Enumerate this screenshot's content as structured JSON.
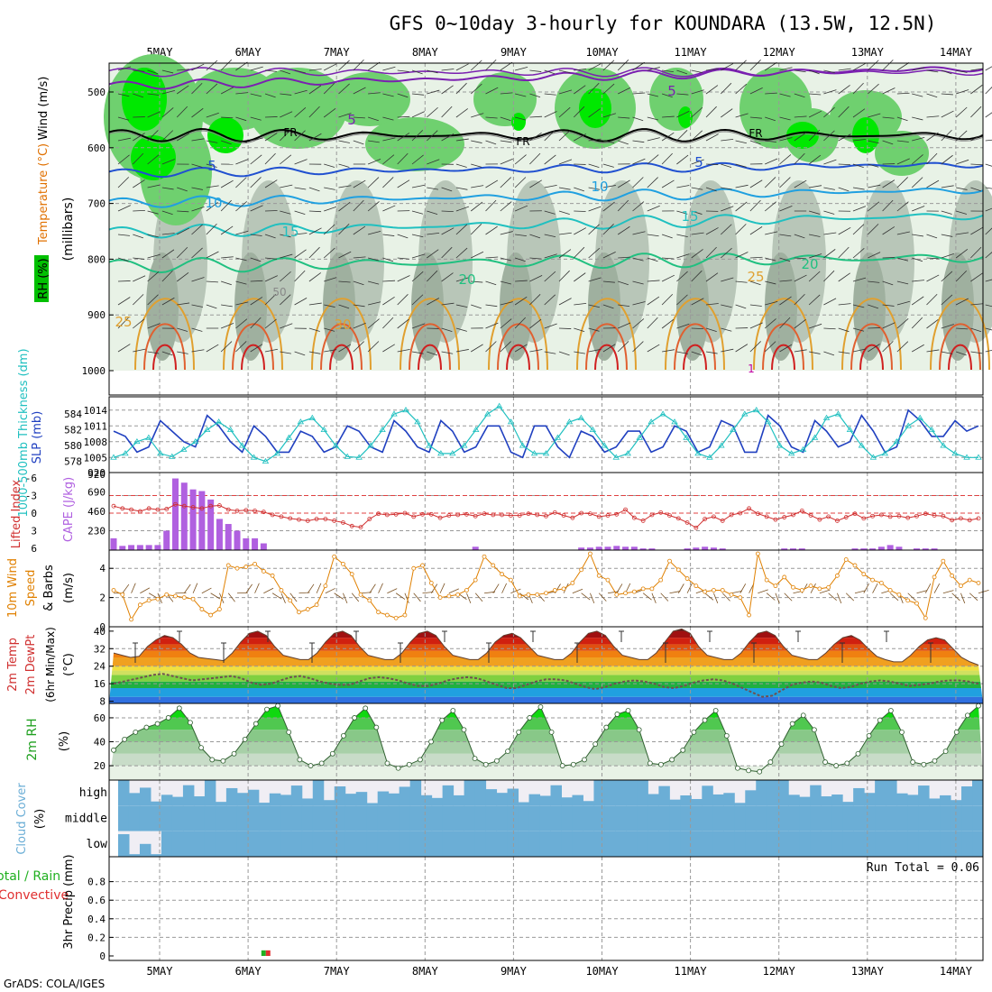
{
  "title": "GFS 0~10day 3-hourly for KOUNDARA (13.5W, 12.5N)",
  "credit": "GrADS: COLA/IGES",
  "date_labels": [
    "5MAY",
    "6MAY",
    "7MAY",
    "8MAY",
    "9MAY",
    "10MAY",
    "11MAY",
    "12MAY",
    "13MAY",
    "14MAY"
  ],
  "colors": {
    "rh_green": "#00e000",
    "temp": "#e03030",
    "wind": "#000000",
    "cyan": "#20c0c0",
    "blue": "#2040c0",
    "cape": "#b060e0",
    "orange": "#e08000",
    "cloud": "#6baed6"
  },
  "chart_data": [
    {
      "type": "heatmap",
      "panel": "profile",
      "ylabel": "(millibars)",
      "series_labels": [
        "RH (%)",
        "Temperature (°C)",
        "Wind (m/s)"
      ],
      "yticks": [
        500,
        600,
        700,
        800,
        900,
        1000
      ],
      "ylim": [
        1000,
        450
      ],
      "grid": true,
      "contour_labels": [
        "5",
        "5",
        "FR",
        "FR",
        "FR",
        "5",
        "5",
        "10",
        "10",
        "15",
        "15",
        "20",
        "20",
        "25",
        "25",
        "30",
        "50",
        "1"
      ]
    },
    {
      "type": "line",
      "panel": "slp_thickness",
      "ylabels": [
        "1000-500mb Thickness (dm)",
        "SLP (mb)"
      ],
      "left_ticks": [
        "584",
        "582",
        "580",
        "578"
      ],
      "right_ticks": [
        "1014",
        "1011",
        "1008",
        "1005"
      ],
      "left_ylim": [
        577.5,
        585.5
      ],
      "right_ylim": [
        1003.5,
        1015.5
      ],
      "series": [
        {
          "name": "SLP (mb)",
          "values": [
            1010,
            1009,
            1006,
            1007,
            1012,
            1010,
            1008,
            1007,
            1013,
            1011,
            1008,
            1006,
            1011,
            1009,
            1006,
            1006,
            1010,
            1009,
            1006,
            1007,
            1011,
            1010,
            1007,
            1006,
            1012,
            1010,
            1007,
            1006,
            1012,
            1010,
            1006,
            1007,
            1011,
            1011,
            1006,
            1005,
            1011,
            1011,
            1007,
            1005,
            1010,
            1009,
            1006,
            1007,
            1010,
            1010,
            1006,
            1007,
            1011,
            1010,
            1006,
            1007,
            1012,
            1011,
            1006,
            1006,
            1013,
            1011,
            1007,
            1006,
            1012,
            1010,
            1007,
            1008,
            1013,
            1010,
            1006,
            1007,
            1014,
            1012,
            1009,
            1009,
            1012,
            1010,
            1011
          ]
        },
        {
          "name": "1000-500mb Thickness (dm)",
          "values": [
            578.5,
            579,
            580.5,
            581,
            579,
            578.6,
            579.5,
            580.5,
            582,
            583,
            582,
            580,
            578.5,
            578,
            579,
            581,
            583,
            583.5,
            582,
            580,
            578.6,
            578.5,
            580,
            582,
            584,
            584.5,
            583,
            580,
            579,
            579,
            580,
            582,
            584,
            585,
            583,
            580,
            579,
            579,
            581,
            583,
            583.5,
            582,
            580,
            578.5,
            579,
            581,
            583,
            584,
            583,
            581,
            579,
            578.5,
            580,
            582,
            584,
            584.5,
            583,
            580,
            579,
            579.5,
            581,
            583.5,
            584,
            582,
            580,
            578.5,
            579,
            580.5,
            582.5,
            583.5,
            582,
            580,
            579,
            578.5,
            578.5
          ]
        }
      ]
    },
    {
      "type": "bar",
      "panel": "cape_li",
      "ylabels": [
        "Lifted Index",
        "CAPE (J/kg)"
      ],
      "left_ticks": [
        "-6",
        "-3",
        "0",
        "3",
        "6"
      ],
      "right_ticks": [
        "920",
        "690",
        "460",
        "230"
      ],
      "left_ylim": [
        6,
        -6
      ],
      "right_ylim": [
        0,
        920
      ],
      "series": [
        {
          "name": "CAPE (J/kg)",
          "values": [
            140,
            50,
            60,
            60,
            60,
            60,
            230,
            850,
            800,
            720,
            700,
            600,
            370,
            310,
            230,
            140,
            140,
            80,
            0,
            0,
            0,
            0,
            0,
            0,
            0,
            0,
            0,
            0,
            0,
            0,
            0,
            0,
            0,
            0,
            0,
            0,
            0,
            0,
            0,
            0,
            0,
            40,
            0,
            0,
            0,
            0,
            0,
            0,
            0,
            0,
            0,
            0,
            0,
            30,
            30,
            40,
            40,
            50,
            40,
            40,
            20,
            20,
            0,
            0,
            0,
            20,
            30,
            40,
            30,
            20,
            0,
            0,
            0,
            0,
            0,
            0,
            20,
            20,
            20,
            0,
            0,
            0,
            0,
            0,
            20,
            20,
            20,
            40,
            60,
            40,
            0,
            20,
            20,
            20,
            0,
            0,
            0,
            0,
            0
          ]
        },
        {
          "name": "Lifted Index",
          "values": [
            -1.2,
            -0.8,
            -0.6,
            -0.3,
            -0.8,
            -0.6,
            -0.7,
            -1.5,
            -1.2,
            -1.0,
            -0.8,
            -1.2,
            -1.3,
            -0.6,
            -0.4,
            -0.5,
            -0.4,
            -0.2,
            0.3,
            0.6,
            0.9,
            1.1,
            1.3,
            1.0,
            1.0,
            1.3,
            1.6,
            2.2,
            2.4,
            1.0,
            0.1,
            0.3,
            0.2,
            0.0,
            0.6,
            0.2,
            0.2,
            0.8,
            0.4,
            0.3,
            0.2,
            0.5,
            0.1,
            0.3,
            0.3,
            0.4,
            0.4,
            0.1,
            0.3,
            0.5,
            -0.1,
            0.4,
            0.8,
            0.0,
            0.1,
            0.6,
            0.4,
            0.2,
            -0.6,
            0.8,
            1.3,
            0.3,
            -0.1,
            0.4,
            0.9,
            1.6,
            2.5,
            1.0,
            0.6,
            1.3,
            0.3,
            0.0,
            -0.8,
            0.1,
            0.6,
            1.1,
            0.7,
            0.3,
            -0.4,
            0.4,
            1.1,
            0.6,
            1.3,
            0.7,
            0.1,
            0.9,
            0.5,
            0.3,
            0.6,
            0.5,
            0.8,
            0.5,
            0.1,
            0.4,
            0.5,
            1.2,
            0.9,
            1.2,
            0.9
          ]
        }
      ]
    },
    {
      "type": "line",
      "panel": "wind10m",
      "ylabel": "10m Wind Speed (m/s) & Barbs",
      "yticks": [
        "4",
        "2",
        "0"
      ],
      "ylim": [
        0,
        5
      ],
      "series": [
        {
          "name": "10m Wind Speed (m/s)",
          "values": [
            2.5,
            2.2,
            0.5,
            1.5,
            1.8,
            1.9,
            2.2,
            2.1,
            2.0,
            1.9,
            1.2,
            0.8,
            1.2,
            4.2,
            4.0,
            4.1,
            4.3,
            3.8,
            3.5,
            2.5,
            1.8,
            1.0,
            1.2,
            1.5,
            2.8,
            4.8,
            4.3,
            3.6,
            2.2,
            1.8,
            1.0,
            0.8,
            0.6,
            0.8,
            4.0,
            4.2,
            3.0,
            2.0,
            2.1,
            2.2,
            2.5,
            3.2,
            4.8,
            4.2,
            3.6,
            3.2,
            2.1,
            2.2,
            2.2,
            2.3,
            2.5,
            2.6,
            3.0,
            3.9,
            5.0,
            3.5,
            3.2,
            2.2,
            2.3,
            2.4,
            2.6,
            2.6,
            3.2,
            4.5,
            3.9,
            3.3,
            2.8,
            2.4,
            2.5,
            2.5,
            2.2,
            2.0,
            0.8,
            5.0,
            3.2,
            2.8,
            3.4,
            2.7,
            2.5,
            2.8,
            2.6,
            2.7,
            3.5,
            4.6,
            4.2,
            3.6,
            3.2,
            3.0,
            2.5,
            2.2,
            1.8,
            1.6,
            0.6,
            3.4,
            4.5,
            3.5,
            2.8,
            3.2,
            3.0
          ]
        }
      ]
    },
    {
      "type": "area",
      "panel": "temp2m",
      "ylabels": [
        "2m Temp",
        "2m DewPt",
        "(6hr Min/Max) (°C)"
      ],
      "yticks": [
        "40",
        "32",
        "24",
        "16",
        "8"
      ],
      "ylim": [
        7,
        42
      ],
      "series": [
        {
          "name": "2m Temp",
          "values": [
            30,
            29,
            28,
            28.5,
            33,
            36,
            38,
            37,
            34,
            30,
            28,
            27.5,
            27,
            26.5,
            30,
            35,
            39,
            40,
            38,
            33,
            29,
            28,
            27,
            27,
            30,
            35,
            39,
            40,
            38,
            33,
            29,
            28,
            27,
            27,
            30,
            35,
            39,
            40,
            38,
            33,
            29,
            28,
            27,
            27,
            30,
            35,
            38,
            39,
            37,
            33,
            29,
            28,
            27,
            27,
            30,
            35,
            39,
            40,
            38,
            33,
            29,
            28,
            27,
            27,
            30,
            35,
            40,
            41,
            39,
            33,
            29,
            28,
            27,
            27,
            30,
            35,
            39,
            40,
            38,
            33,
            29,
            28,
            27,
            27,
            30,
            34,
            37,
            38,
            36,
            32,
            28.5,
            27,
            26,
            26,
            29,
            33,
            36,
            37,
            36,
            32,
            28,
            26,
            24.5
          ]
        },
        {
          "name": "2m DewPt",
          "values": [
            16,
            17,
            18,
            19,
            20,
            20.5,
            19.5,
            18.5,
            17.5,
            18,
            18.5,
            19,
            19.5,
            18.5,
            16.5,
            15.5,
            16,
            17.5,
            19,
            19.5,
            18.5,
            17,
            16,
            15.5,
            15.5,
            17,
            18.5,
            19,
            18.5,
            17.5,
            16,
            15,
            15,
            16,
            17.5,
            18.5,
            19,
            18.5,
            17,
            15.5,
            14,
            14,
            15.5,
            17,
            18,
            18,
            17.5,
            16,
            14.5,
            13.5,
            14.5,
            16,
            17,
            17.5,
            17,
            16,
            14.5,
            14,
            15,
            16.5,
            17.5,
            18,
            17.5,
            16,
            14,
            12,
            10,
            10.5,
            13,
            15.5,
            16.5,
            17,
            16.5,
            15,
            14,
            14.5,
            16,
            17,
            17.5,
            17,
            16,
            15,
            15.5,
            16,
            17,
            17.5,
            17.5,
            17,
            16
          ]
        }
      ]
    },
    {
      "type": "area",
      "panel": "rh2m",
      "ylabel": "2m RH (%)",
      "yticks": [
        "60",
        "40",
        "20"
      ],
      "ylim": [
        8,
        72
      ],
      "series": [
        {
          "name": "2m RH",
          "values": [
            33,
            42,
            48,
            52,
            55,
            60,
            68,
            56,
            35,
            25,
            24,
            30,
            42,
            55,
            67,
            70,
            48,
            25,
            20,
            22,
            30,
            45,
            60,
            68,
            52,
            22,
            18,
            21,
            25,
            40,
            58,
            66,
            50,
            26,
            21,
            24,
            32,
            48,
            60,
            69,
            48,
            20,
            21,
            25,
            38,
            52,
            63,
            66,
            50,
            22,
            21,
            25,
            33,
            48,
            58,
            66,
            45,
            18,
            16,
            15,
            23,
            38,
            55,
            62,
            50,
            23,
            20,
            22,
            30,
            45,
            58,
            66,
            48,
            23,
            21,
            24,
            32,
            48,
            62,
            70
          ]
        }
      ]
    },
    {
      "type": "heatmap",
      "panel": "cloud_cover",
      "ylabel": "Cloud Cover (%)",
      "levels": [
        "high",
        "middle",
        "low"
      ],
      "color": "#6baed6"
    },
    {
      "type": "bar",
      "panel": "precip",
      "ylabels": [
        "Total / Rain",
        "Convective",
        "3hr Precip (mm)"
      ],
      "yticks": [
        "0.8",
        "0.6",
        "0.4",
        "0.2",
        "0"
      ],
      "ylim": [
        0,
        1.0
      ],
      "annotation": "Run Total = 0.06",
      "series": [
        {
          "name": "Total / Rain",
          "values": [
            {
              "x": 6.17,
              "v": 0.06
            }
          ]
        },
        {
          "name": "Convective",
          "values": [
            {
              "x": 6.17,
              "v": 0.06
            }
          ]
        }
      ]
    }
  ]
}
